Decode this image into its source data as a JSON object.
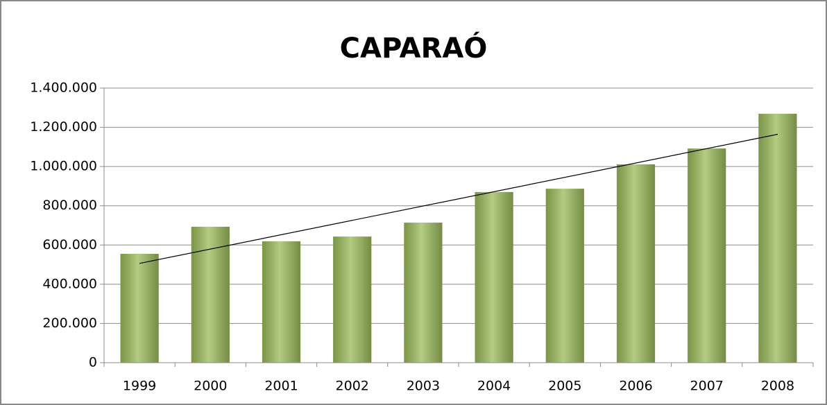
{
  "chart_data": {
    "type": "bar",
    "title": "CAPARAÓ",
    "categories": [
      "1999",
      "2000",
      "2001",
      "2002",
      "2003",
      "2004",
      "2005",
      "2006",
      "2007",
      "2008"
    ],
    "values": [
      555000,
      693000,
      619000,
      643000,
      714000,
      870000,
      887000,
      1011000,
      1092000,
      1269000
    ],
    "color": "#9bbb59",
    "ylim": [
      0,
      1400000
    ],
    "yticks": [
      0,
      {
        "value": 200000,
        "label": "200.000"
      },
      {
        "value": 400000,
        "label": "400.000"
      },
      {
        "value": 600000,
        "label": "600.000"
      },
      {
        "value": 800000,
        "label": "800.000"
      },
      {
        "value": 1000000,
        "label": "1.000.000"
      },
      {
        "value": 1200000,
        "label": "1.200.000"
      },
      {
        "value": 1400000,
        "label": "1.400.000"
      }
    ],
    "grid": true,
    "trendline": "linear"
  }
}
